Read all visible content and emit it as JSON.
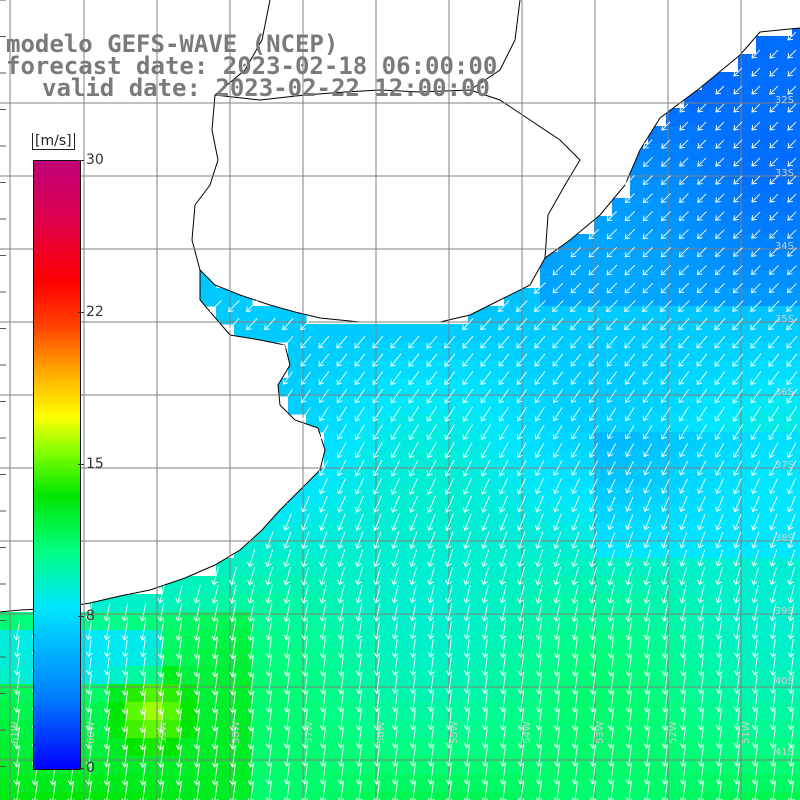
{
  "title": {
    "line1": "modelo GEFS-WAVE (NCEP)",
    "line2": "forecast date: 2023-02-18 06:00:00",
    "line3": "valid date: 2023-02-22 12:00:00"
  },
  "colorbar": {
    "units": "[m/s]",
    "ticks": [
      "30",
      "22",
      "15",
      "8",
      "0"
    ],
    "tick_values": [
      30,
      22,
      15,
      8,
      0
    ],
    "range": [
      0,
      30
    ],
    "stops": [
      "#0000ff",
      "#0080ff",
      "#00e6ff",
      "#00ff80",
      "#00e600",
      "#80ff00",
      "#ffff00",
      "#ffa000",
      "#ff4000",
      "#ff0000",
      "#e0004a",
      "#c0007a"
    ]
  },
  "latitude_labels": [
    "32S",
    "33S",
    "34S",
    "35S",
    "36S",
    "37S",
    "38S",
    "39S",
    "40S",
    "41S"
  ],
  "longitude_labels": [
    "61W",
    "60W",
    "59W",
    "58W",
    "57W",
    "56W",
    "55W",
    "54W",
    "53W",
    "52W",
    "51W"
  ],
  "colors": {
    "land": "#ffffff",
    "coastline": "#000000",
    "grid": "#808080",
    "arrows": "#ffffff",
    "text": "#7a7a7a"
  },
  "map_data": {
    "variable": "wind speed",
    "wind_direction_north": "from north-east, toward south-west",
    "wind_direction_south": "from north, toward south",
    "speed_north_ms": 5,
    "speed_south_ms": 11,
    "max_speed_ms": 15
  }
}
